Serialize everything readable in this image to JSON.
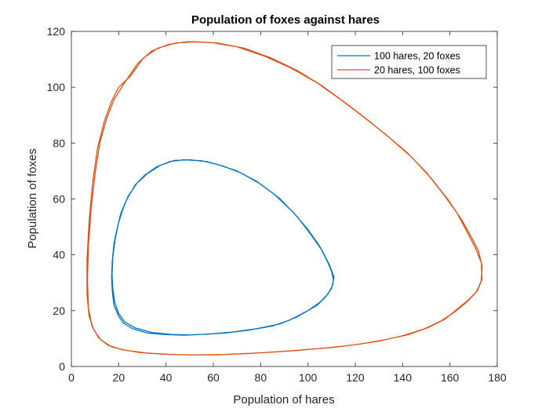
{
  "chart_data": {
    "type": "line",
    "title": "Population of foxes against hares",
    "xlabel": "Population of hares",
    "ylabel": "Population of foxes",
    "xlim": [
      0,
      180
    ],
    "ylim": [
      0,
      120
    ],
    "xticks": [
      0,
      20,
      40,
      60,
      80,
      100,
      120,
      140,
      160,
      180
    ],
    "yticks": [
      0,
      20,
      40,
      60,
      80,
      100,
      120
    ],
    "grid": false,
    "legend_position": "top-right",
    "series": [
      {
        "name": "100 hares, 20 foxes",
        "color": "#0072BD",
        "points": [
          [
            100,
            20
          ],
          [
            92,
            16.5
          ],
          [
            85,
            14.5
          ],
          [
            75,
            13
          ],
          [
            65,
            12
          ],
          [
            55,
            11.5
          ],
          [
            48,
            11.2
          ],
          [
            40,
            11.4
          ],
          [
            32,
            12
          ],
          [
            26,
            13.5
          ],
          [
            22,
            15.5
          ],
          [
            20,
            18
          ],
          [
            18,
            22
          ],
          [
            17.3,
            27
          ],
          [
            17,
            32
          ],
          [
            17.3,
            38
          ],
          [
            18,
            44
          ],
          [
            19.5,
            50
          ],
          [
            21,
            55
          ],
          [
            23.5,
            60
          ],
          [
            27,
            65
          ],
          [
            31,
            68.5
          ],
          [
            36,
            71.5
          ],
          [
            42,
            73.5
          ],
          [
            48,
            74
          ],
          [
            55,
            73.7
          ],
          [
            62,
            72.3
          ],
          [
            70,
            70
          ],
          [
            78,
            66.5
          ],
          [
            86,
            61.5
          ],
          [
            94,
            55
          ],
          [
            100,
            49
          ],
          [
            105,
            43
          ],
          [
            108,
            38
          ],
          [
            110,
            34
          ],
          [
            110.8,
            31
          ],
          [
            110,
            28
          ],
          [
            107.5,
            25
          ],
          [
            104,
            22
          ],
          [
            100,
            20
          ],
          [
            95,
            17.6
          ],
          [
            88,
            15.2
          ],
          [
            78,
            13.5
          ],
          [
            68,
            12.3
          ],
          [
            58,
            11.6
          ],
          [
            50,
            11.3
          ],
          [
            42,
            11.5
          ],
          [
            34,
            12.2
          ],
          [
            27,
            13.8
          ],
          [
            22.5,
            16
          ],
          [
            20,
            19
          ],
          [
            18.3,
            23
          ],
          [
            17.5,
            28
          ],
          [
            17.2,
            33
          ],
          [
            17.5,
            39
          ],
          [
            18.4,
            45
          ],
          [
            19.8,
            51
          ],
          [
            21.6,
            56
          ],
          [
            24,
            61
          ],
          [
            27.6,
            65.5
          ],
          [
            32,
            69
          ],
          [
            37.5,
            72
          ],
          [
            43.5,
            73.8
          ],
          [
            50,
            74
          ],
          [
            57,
            73.4
          ],
          [
            64,
            71.8
          ],
          [
            72,
            69.2
          ],
          [
            80,
            65.3
          ],
          [
            88,
            60.2
          ],
          [
            95.5,
            53.6
          ],
          [
            101,
            47.5
          ],
          [
            106,
            41.5
          ],
          [
            109,
            36.5
          ],
          [
            111,
            32
          ],
          [
            110.4,
            29
          ],
          [
            108.5,
            26
          ],
          [
            105,
            23
          ],
          [
            100,
            20
          ]
        ]
      },
      {
        "name": "20 hares, 100 foxes",
        "color": "#D95319",
        "points": [
          [
            20,
            100
          ],
          [
            17,
            95
          ],
          [
            14,
            88
          ],
          [
            11,
            78
          ],
          [
            9,
            66
          ],
          [
            7.5,
            52
          ],
          [
            6.6,
            38
          ],
          [
            6.6,
            26
          ],
          [
            7.5,
            18
          ],
          [
            9.5,
            13
          ],
          [
            12.5,
            9.5
          ],
          [
            17,
            7
          ],
          [
            23,
            5.8
          ],
          [
            32,
            4.8
          ],
          [
            42,
            4.3
          ],
          [
            52,
            4.1
          ],
          [
            65,
            4.3
          ],
          [
            80,
            4.9
          ],
          [
            95,
            5.7
          ],
          [
            110,
            6.8
          ],
          [
            122,
            8
          ],
          [
            132,
            9.5
          ],
          [
            142,
            11.3
          ],
          [
            151,
            14
          ],
          [
            158,
            17
          ],
          [
            163,
            20.5
          ],
          [
            168,
            24
          ],
          [
            171.5,
            27
          ],
          [
            173.5,
            31
          ],
          [
            173.3,
            37
          ],
          [
            171,
            42
          ],
          [
            168,
            47
          ],
          [
            163,
            55
          ],
          [
            157,
            62
          ],
          [
            150,
            69.5
          ],
          [
            142,
            76.5
          ],
          [
            133,
            83
          ],
          [
            124,
            89
          ],
          [
            114,
            95.5
          ],
          [
            104,
            101.5
          ],
          [
            93,
            106.8
          ],
          [
            82,
            111
          ],
          [
            70,
            114.5
          ],
          [
            59,
            116
          ],
          [
            49,
            116.3
          ],
          [
            41,
            115.3
          ],
          [
            34,
            113
          ],
          [
            28,
            108.5
          ],
          [
            22,
            101
          ],
          [
            18,
            95.5
          ],
          [
            15,
            89
          ],
          [
            12,
            80
          ],
          [
            10,
            69
          ],
          [
            8.3,
            56
          ],
          [
            7.2,
            43
          ],
          [
            6.8,
            31
          ],
          [
            7.2,
            21
          ],
          [
            8.7,
            14.5
          ],
          [
            11.5,
            10.3
          ],
          [
            15.5,
            7.6
          ],
          [
            21,
            6.1
          ],
          [
            29,
            5
          ],
          [
            39,
            4.4
          ],
          [
            50,
            4.1
          ],
          [
            62,
            4.2
          ],
          [
            76,
            4.7
          ],
          [
            91,
            5.5
          ],
          [
            106,
            6.5
          ],
          [
            119,
            7.7
          ],
          [
            130,
            9.1
          ],
          [
            140,
            11
          ],
          [
            149,
            13.4
          ],
          [
            156.5,
            16.4
          ],
          [
            162,
            19.5
          ],
          [
            167,
            23
          ],
          [
            171,
            26.5
          ],
          [
            173.2,
            30.5
          ],
          [
            173.6,
            36
          ],
          [
            172,
            41.5
          ],
          [
            169.3,
            46
          ],
          [
            165,
            52.5
          ],
          [
            159,
            60
          ],
          [
            152,
            67.5
          ],
          [
            144,
            74.8
          ],
          [
            135,
            81.5
          ],
          [
            126,
            87.8
          ],
          [
            116,
            94.3
          ],
          [
            106,
            100.5
          ],
          [
            95.5,
            106
          ],
          [
            84,
            110.6
          ],
          [
            73,
            114
          ],
          [
            62,
            115.8
          ],
          [
            52,
            116.3
          ],
          [
            44,
            115.8
          ],
          [
            36.5,
            114
          ],
          [
            30.5,
            110.5
          ],
          [
            25,
            104
          ],
          [
            20,
            100
          ]
        ]
      }
    ]
  }
}
